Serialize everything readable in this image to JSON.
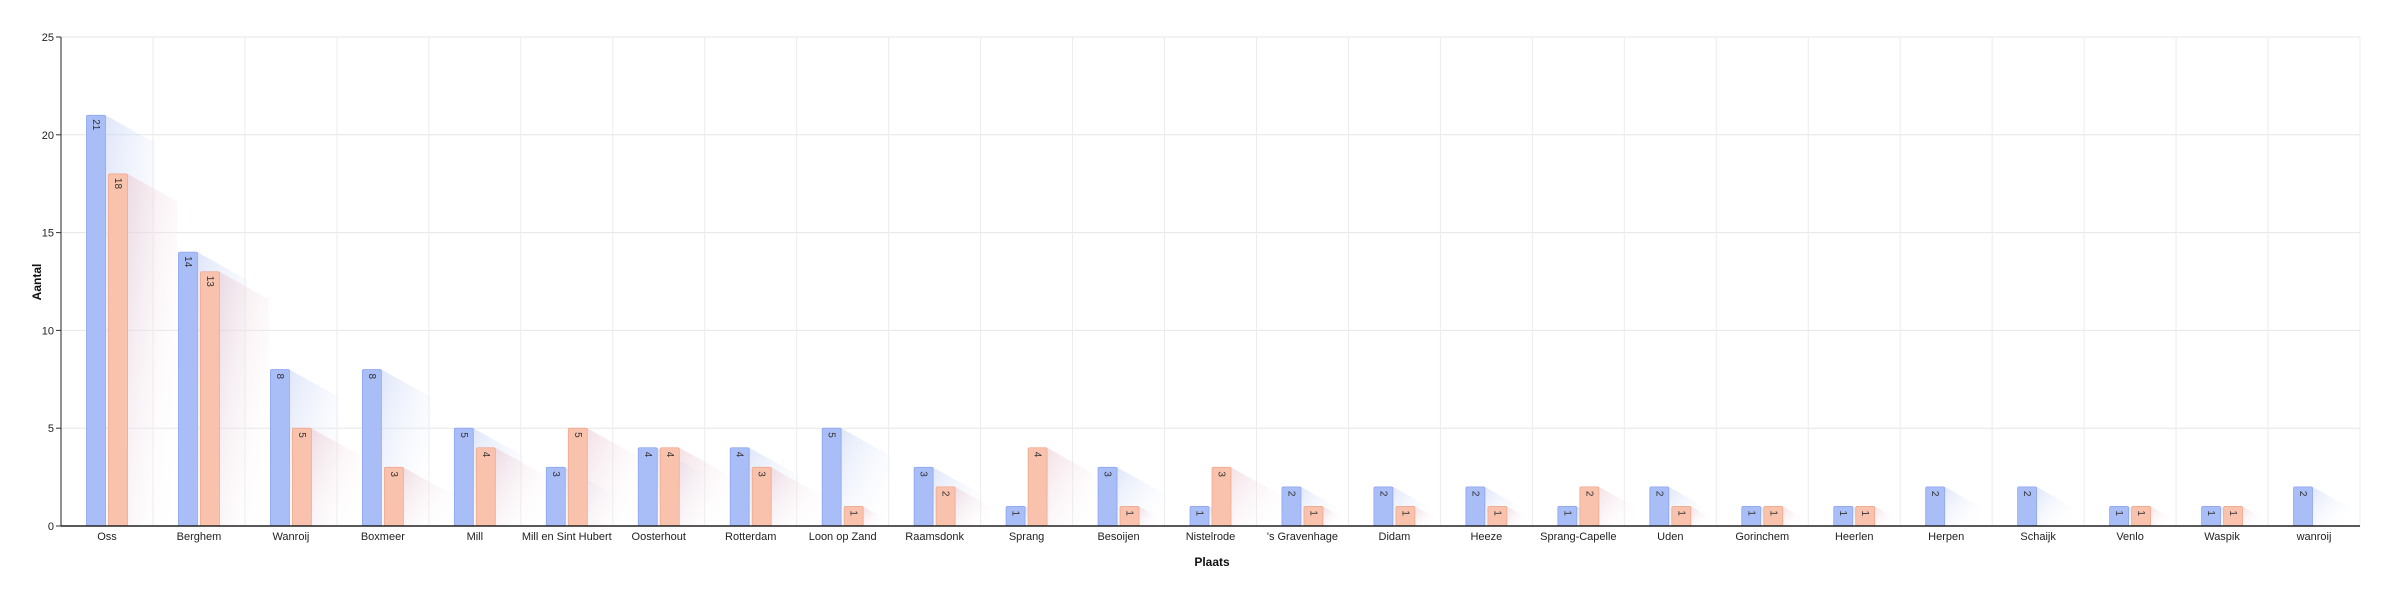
{
  "chart_data": {
    "type": "bar",
    "title": "",
    "xlabel": "Plaats",
    "ylabel": "Aantal",
    "ylim": [
      0,
      25
    ],
    "yticks": [
      0,
      5,
      10,
      15,
      20,
      25
    ],
    "grid": true,
    "legend": "none",
    "categories": [
      "Oss",
      "Berghem",
      "Wanroij",
      "Boxmeer",
      "Mill",
      "Mill en Sint Hubert",
      "Oosterhout",
      "Rotterdam",
      "Loon op Zand",
      "Raamsdonk",
      "Sprang",
      "Besoijen",
      "Nistelrode",
      "'s Gravenhage",
      "Didam",
      "Heeze",
      "Sprang-Capelle",
      "Uden",
      "Gorinchem",
      "Heerlen",
      "Herpen",
      "Schaijk",
      "Venlo",
      "Waspik",
      "wanroij"
    ],
    "series": [
      {
        "color": "#a9bdf7",
        "values": [
          21,
          14,
          8,
          8,
          5,
          3,
          4,
          4,
          5,
          3,
          1,
          3,
          1,
          2,
          2,
          2,
          1,
          2,
          1,
          1,
          2,
          2,
          1,
          1,
          2
        ]
      },
      {
        "color": "#f9c2ad",
        "values": [
          18,
          13,
          5,
          3,
          4,
          5,
          4,
          3,
          1,
          2,
          4,
          1,
          3,
          1,
          1,
          1,
          2,
          1,
          1,
          1,
          null,
          null,
          1,
          1,
          null
        ]
      }
    ]
  }
}
